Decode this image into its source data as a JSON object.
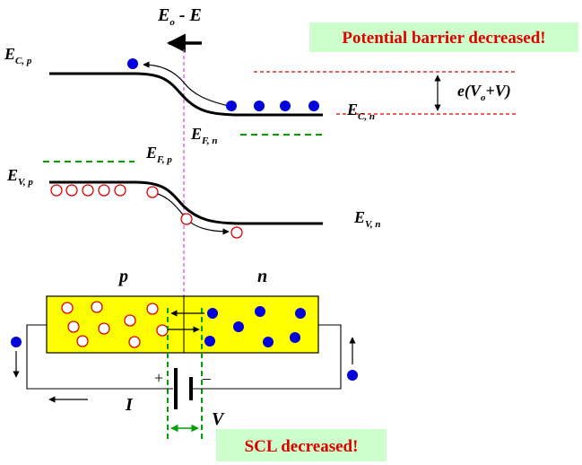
{
  "callouts": {
    "top": "Potential barrier decreased!",
    "bottom": "SCL decreased!"
  },
  "labels": {
    "field_main": "E",
    "field_sub": "o",
    "field_rest": " - E",
    "ec_p_main": "E",
    "ec_p_sub": "C, p",
    "ec_n_main": "E",
    "ec_n_sub": "C, n",
    "ef_n_main": "E",
    "ef_n_sub": "F, n",
    "ef_p_main": "E",
    "ef_p_sub": "F, p",
    "ev_p_main": "E",
    "ev_p_sub": "V, p",
    "ev_n_main": "E",
    "ev_n_sub": "V, n",
    "barrier_a": "e(V",
    "barrier_sub": "o",
    "barrier_b": "+V)",
    "p_region": "p",
    "n_region": "n",
    "current": "I",
    "voltage": "V",
    "plus": "+",
    "minus": "–"
  },
  "colors": {
    "electron": "#0000dd",
    "hole": "#e00000",
    "fermi": "#00a000",
    "barrier_ref": "#e00000",
    "junction": "#e040e0",
    "crystal": "#ffff00",
    "callout_bg": "#ccffcc",
    "callout_text": "#e00000"
  }
}
